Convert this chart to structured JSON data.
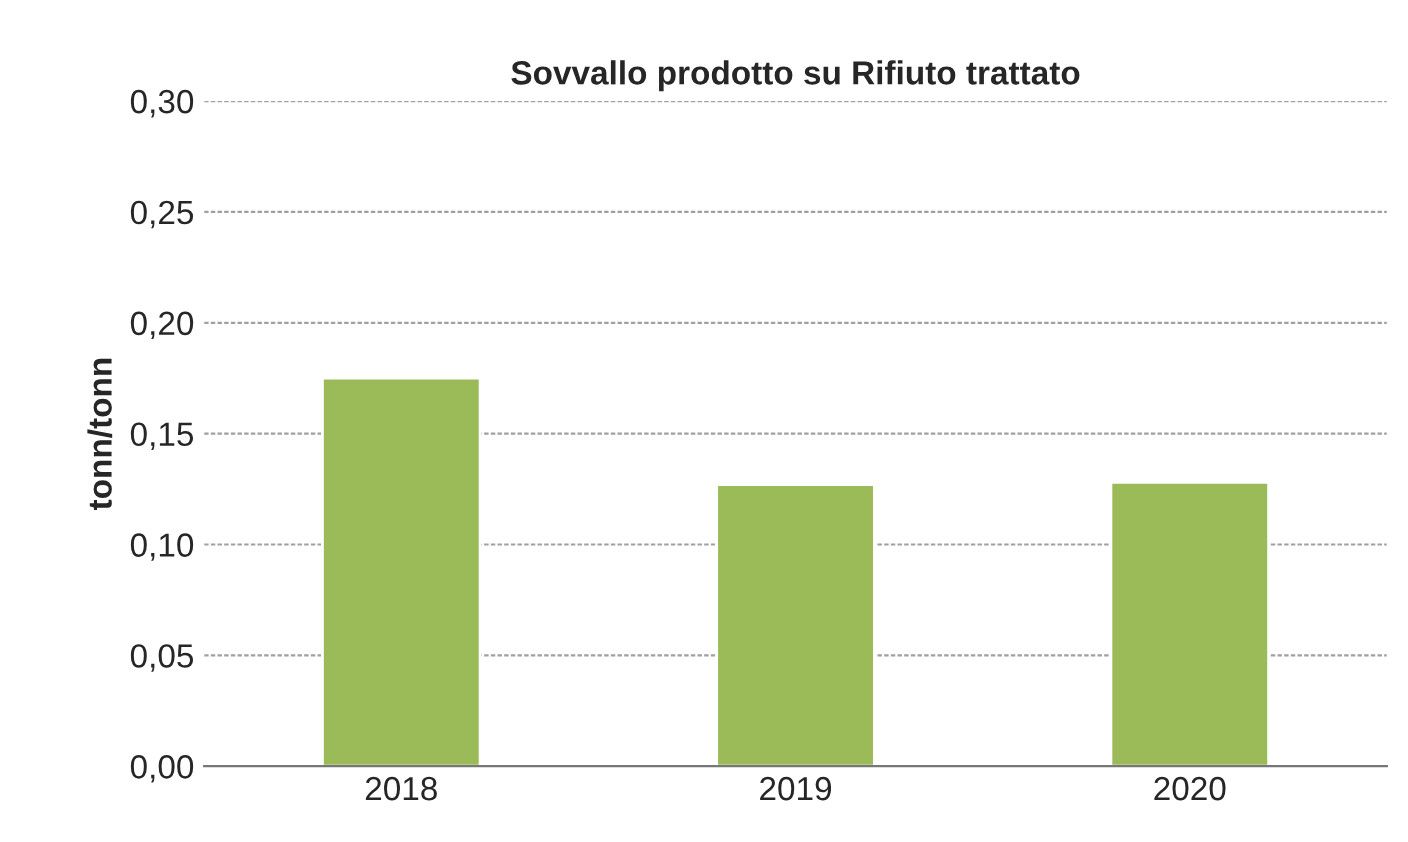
{
  "chart_data": {
    "type": "bar",
    "title": "Sovvallo prodotto su Rifiuto trattato",
    "ylabel": "tonn/tonn",
    "categories": [
      "2018",
      "2019",
      "2020"
    ],
    "values": [
      0.175,
      0.127,
      0.128
    ],
    "color": "#9bbb59",
    "ylim": [
      0,
      0.3
    ],
    "yticks": [
      {
        "value": 0,
        "label": "0,00"
      },
      {
        "value": 0.05,
        "label": "0,05"
      },
      {
        "value": 0.1,
        "label": "0,10"
      },
      {
        "value": 0.15,
        "label": "0,15"
      },
      {
        "value": 0.2,
        "label": "0,20"
      },
      {
        "value": 0.25,
        "label": "0,25"
      },
      {
        "value": 0.3,
        "label": "0,30"
      }
    ],
    "grid": "y",
    "legend": false
  }
}
